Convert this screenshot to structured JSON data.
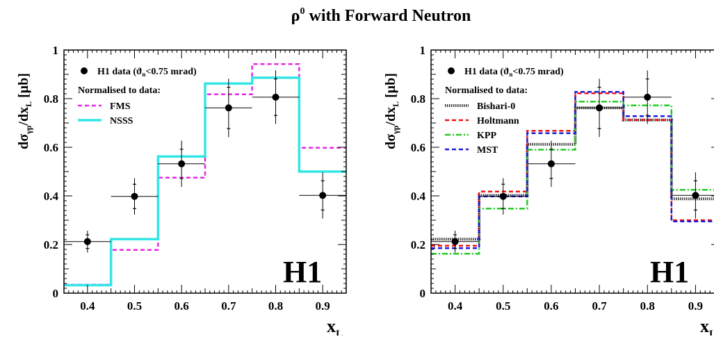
{
  "figure": {
    "title_main": "ρ",
    "title_sup": "0",
    "title_rest": " with Forward Neutron"
  },
  "chart_data": [
    {
      "type": "line",
      "panel": "left",
      "ylabel_main": "dσ",
      "ylabel_sub1": "γp",
      "ylabel_mid": "/dx",
      "ylabel_sub2": "L",
      "ylabel_unit": " [μb]",
      "xlabel_main": "x",
      "xlabel_sub": "L",
      "xlim": [
        0.35,
        0.95
      ],
      "ylim": [
        0,
        1
      ],
      "xticks": [
        0.4,
        0.5,
        0.6,
        0.7,
        0.8,
        0.9
      ],
      "xtick_labels": [
        "0.4",
        "0.5",
        "0.6",
        "0.7",
        "0.8",
        "0.9"
      ],
      "yticks": [
        0,
        0.2,
        0.4,
        0.6,
        0.8,
        1
      ],
      "ytick_labels": [
        "0",
        "0.2",
        "0.4",
        "0.6",
        "0.8",
        "1"
      ],
      "watermark": "H1",
      "legend": {
        "data_label": "H1 data (ϑ",
        "data_sub": "n",
        "data_tail": "<0.75 mrad)",
        "norm_label": "Normalised to data:"
      },
      "data_points": {
        "x": [
          0.4,
          0.5,
          0.6,
          0.7,
          0.8,
          0.9
        ],
        "y": [
          0.212,
          0.398,
          0.532,
          0.762,
          0.806,
          0.402
        ],
        "err_stat": [
          0.028,
          0.05,
          0.06,
          0.085,
          0.075,
          0.06
        ],
        "err_tot": [
          0.045,
          0.075,
          0.095,
          0.12,
          0.11,
          0.095
        ]
      },
      "bin_edges": [
        0.35,
        0.45,
        0.55,
        0.65,
        0.75,
        0.85,
        0.95
      ],
      "series": [
        {
          "name": "FMS",
          "color": "#e628e6",
          "dash": "6,4",
          "width": 2.5,
          "values": [
            0.035,
            0.178,
            0.475,
            0.818,
            0.942,
            0.598
          ]
        },
        {
          "name": "NSSS",
          "color": "#33e6e6",
          "dash": "",
          "width": 3.5,
          "values": [
            0.033,
            0.222,
            0.562,
            0.862,
            0.886,
            0.5
          ]
        }
      ]
    },
    {
      "type": "line",
      "panel": "right",
      "ylabel_main": "dσ",
      "ylabel_sub1": "γp",
      "ylabel_mid": "/dx",
      "ylabel_sub2": "L",
      "ylabel_unit": " [μb]",
      "xlabel_main": "x",
      "xlabel_sub": "L",
      "xlim": [
        0.35,
        0.95
      ],
      "ylim": [
        0,
        1
      ],
      "xticks": [
        0.4,
        0.5,
        0.6,
        0.7,
        0.8,
        0.9
      ],
      "xtick_labels": [
        "0.4",
        "0.5",
        "0.6",
        "0.7",
        "0.8",
        "0.9"
      ],
      "yticks": [
        0,
        0.2,
        0.4,
        0.6,
        0.8,
        1
      ],
      "ytick_labels": [
        "0",
        "0.2",
        "0.4",
        "0.6",
        "0.8",
        "1"
      ],
      "watermark": "H1",
      "legend": {
        "data_label": "H1 data (ϑ",
        "data_sub": "n",
        "data_tail": "<0.75 mrad)",
        "norm_label": "Normalised to data:"
      },
      "data_points": {
        "x": [
          0.4,
          0.5,
          0.6,
          0.7,
          0.8,
          0.9
        ],
        "y": [
          0.212,
          0.398,
          0.532,
          0.762,
          0.806,
          0.402
        ],
        "err_stat": [
          0.028,
          0.05,
          0.06,
          0.085,
          0.075,
          0.06
        ],
        "err_tot": [
          0.045,
          0.075,
          0.095,
          0.12,
          0.11,
          0.095
        ]
      },
      "bin_edges": [
        0.35,
        0.45,
        0.55,
        0.65,
        0.75,
        0.85,
        0.95
      ],
      "series": [
        {
          "name": "Bishari-0",
          "color": "#333333",
          "dash": "1.5,1.5",
          "width": 4,
          "values": [
            0.222,
            0.402,
            0.612,
            0.762,
            0.712,
            0.388
          ]
        },
        {
          "name": "Holtmann",
          "color": "#ee1111",
          "dash": "6,4",
          "width": 2.5,
          "values": [
            0.195,
            0.418,
            0.668,
            0.822,
            0.712,
            0.3
          ]
        },
        {
          "name": "KPP",
          "color": "#22cc22",
          "dash": "8,3,2,3",
          "width": 2.5,
          "values": [
            0.162,
            0.348,
            0.59,
            0.788,
            0.772,
            0.425
          ]
        },
        {
          "name": "MST",
          "color": "#1a1add",
          "dash": "6,4",
          "width": 2.5,
          "values": [
            0.185,
            0.398,
            0.658,
            0.828,
            0.728,
            0.295
          ]
        }
      ]
    }
  ]
}
